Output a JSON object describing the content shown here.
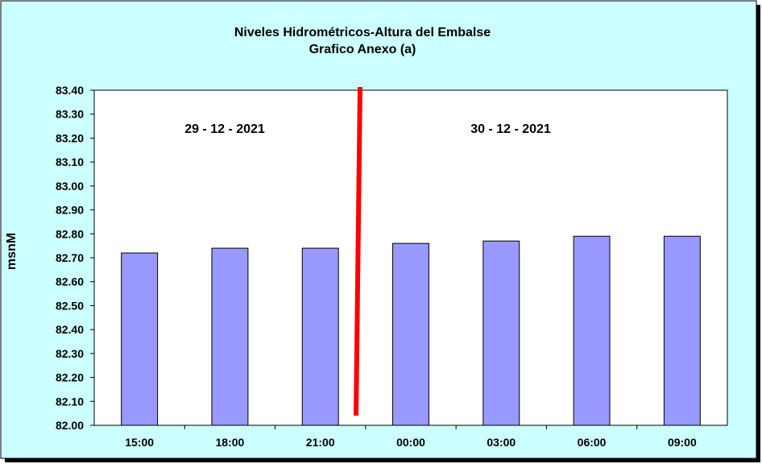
{
  "colors": {
    "background": "#ccffff",
    "plot_area": "#ffffff",
    "bar_fill": "#9999ff",
    "divider": "#ff0000"
  },
  "chart_data": {
    "type": "bar",
    "title": "Niveles Hidrométricos-Altura del Embalse",
    "subtitle": "Grafico Anexo (a)",
    "xlabel": "",
    "ylabel": "msnM",
    "categories": [
      "15:00",
      "18:00",
      "21:00",
      "00:00",
      "03:00",
      "06:00",
      "09:00"
    ],
    "values": [
      82.72,
      82.74,
      82.74,
      82.76,
      82.77,
      82.79,
      82.79
    ],
    "ylim": [
      82.0,
      83.4
    ],
    "yticks": [
      "82.00",
      "82.10",
      "82.20",
      "82.30",
      "82.40",
      "82.50",
      "82.60",
      "82.70",
      "82.80",
      "82.90",
      "83.00",
      "83.10",
      "83.20",
      "83.30",
      "83.40"
    ],
    "grid": false,
    "legend": "none",
    "annotations": [
      "29 - 12 - 2021",
      "30 - 12 - 2021"
    ],
    "divider_between": [
      "21:00",
      "00:00"
    ]
  }
}
